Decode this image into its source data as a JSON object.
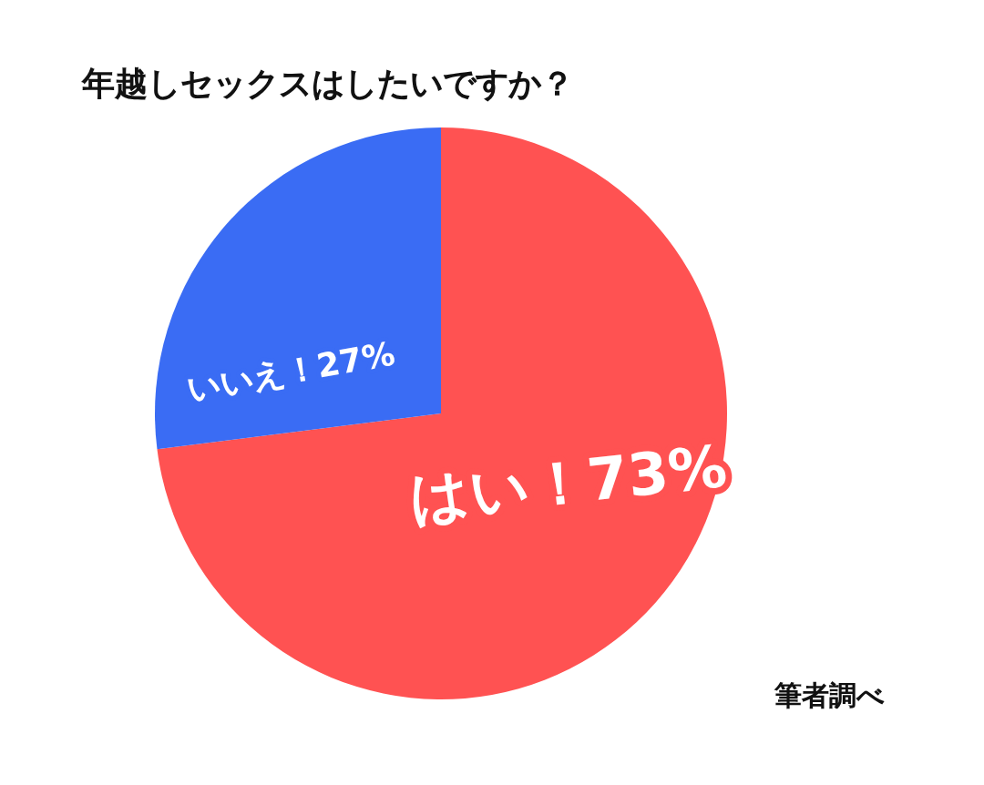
{
  "chart_data": {
    "type": "pie",
    "title": "年越しセックスはしたいですか？",
    "categories": [
      "はい！",
      "いいえ！"
    ],
    "values": [
      73,
      27
    ],
    "value_labels": [
      "73%",
      "27%"
    ],
    "colors": [
      "#ff5252",
      "#3a6cf4"
    ],
    "legend": false,
    "annotations": [
      "筆者調べ"
    ]
  }
}
